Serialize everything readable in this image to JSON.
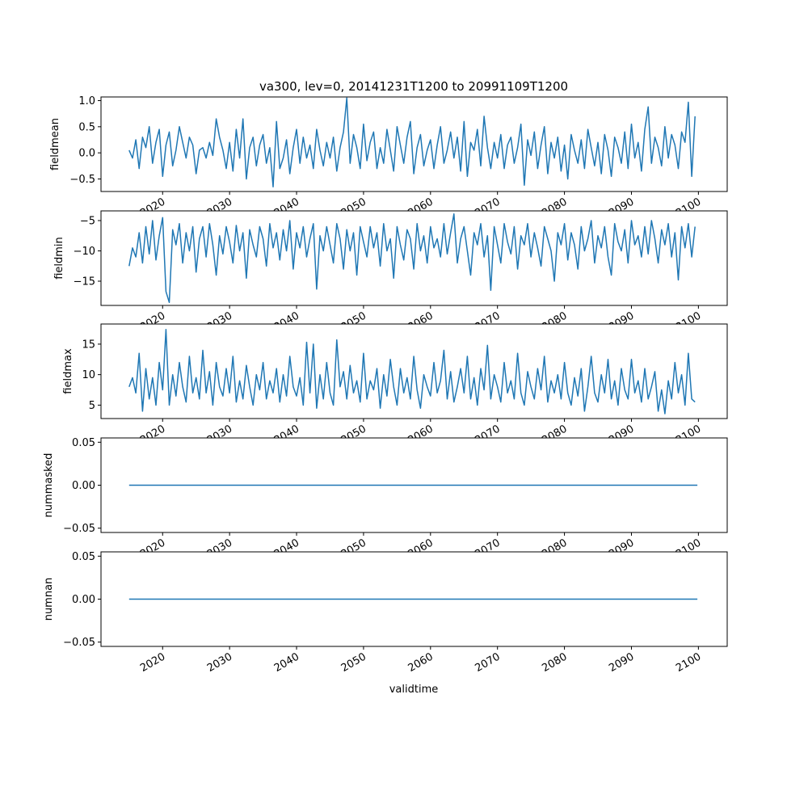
{
  "chart_data": {
    "type": "line",
    "title": "va300, lev=0, 20141231T1200 to 20991109T1200",
    "xlabel": "validtime",
    "x_ticks": [
      "2020",
      "2030",
      "2040",
      "2050",
      "2060",
      "2070",
      "2080",
      "2090",
      "2100"
    ],
    "x_tick_values": [
      2020,
      2030,
      2040,
      2050,
      2060,
      2070,
      2080,
      2090,
      2100
    ],
    "xlim": [
      2010.8,
      2104.3
    ],
    "line_color": "#1f77b4",
    "panels": [
      {
        "ylabel": "fieldmean",
        "ylim": [
          -0.74,
          1.07
        ],
        "y_ticks": [
          "1.0",
          "0.5",
          "0.0",
          "−0.5"
        ],
        "y_tick_values": [
          1.0,
          0.5,
          0.0,
          -0.5
        ],
        "x_start": 2015.0,
        "x_step": 0.5,
        "values": [
          0.05,
          -0.1,
          0.25,
          -0.3,
          0.3,
          0.1,
          0.5,
          -0.2,
          0.2,
          0.45,
          -0.45,
          0.15,
          0.4,
          -0.25,
          0.05,
          0.5,
          0.2,
          -0.1,
          0.3,
          0.15,
          -0.4,
          0.05,
          0.1,
          -0.1,
          0.2,
          -0.05,
          0.65,
          0.3,
          0.05,
          -0.3,
          0.2,
          -0.35,
          0.45,
          -0.1,
          0.65,
          -0.5,
          0.1,
          0.3,
          -0.25,
          0.15,
          0.35,
          -0.2,
          0.1,
          -0.65,
          0.6,
          -0.3,
          -0.1,
          0.25,
          -0.4,
          0.1,
          0.45,
          -0.2,
          0.3,
          -0.1,
          0.15,
          -0.3,
          0.45,
          0.05,
          -0.25,
          0.2,
          -0.1,
          0.3,
          -0.35,
          0.1,
          0.4,
          1.05,
          -0.2,
          0.35,
          0.1,
          -0.3,
          0.55,
          -0.15,
          0.2,
          0.4,
          -0.3,
          0.1,
          -0.2,
          0.45,
          0.05,
          -0.35,
          0.5,
          0.15,
          -0.2,
          0.3,
          0.6,
          -0.4,
          0.1,
          0.35,
          -0.25,
          0.05,
          0.25,
          -0.3,
          0.15,
          0.5,
          -0.2,
          0.05,
          0.4,
          -0.1,
          0.3,
          -0.35,
          0.6,
          -0.45,
          0.2,
          0.05,
          0.45,
          -0.25,
          0.7,
          0.1,
          -0.3,
          0.2,
          -0.1,
          0.35,
          -0.3,
          0.15,
          0.3,
          -0.2,
          0.1,
          0.55,
          -0.62,
          0.25,
          -0.05,
          0.4,
          -0.3,
          0.15,
          0.5,
          -0.4,
          0.2,
          -0.1,
          0.3,
          -0.35,
          0.15,
          -0.5,
          0.35,
          0.05,
          -0.2,
          0.25,
          -0.3,
          0.45,
          0.1,
          -0.25,
          0.2,
          -0.4,
          0.35,
          0.05,
          -0.45,
          0.3,
          0.1,
          -0.2,
          0.4,
          -0.3,
          0.55,
          -0.1,
          0.2,
          -0.35,
          0.45,
          0.88,
          -0.2,
          0.3,
          0.1,
          -0.25,
          0.5,
          -0.1,
          0.35,
          0.15,
          -0.3,
          0.4,
          0.2,
          0.97,
          -0.45,
          0.7
        ]
      },
      {
        "ylabel": "fieldmin",
        "ylim": [
          -19.0,
          -3.4
        ],
        "y_ticks": [
          "−5",
          "−10",
          "−15"
        ],
        "y_tick_values": [
          -5,
          -10,
          -15
        ],
        "x_start": 2015.0,
        "x_step": 0.5,
        "values": [
          -12.5,
          -9.5,
          -11,
          -7,
          -12,
          -6,
          -10.5,
          -5,
          -11.5,
          -7.5,
          -4.5,
          -16.7,
          -18.5,
          -6.5,
          -9,
          -5.5,
          -12,
          -7,
          -10,
          -6,
          -13.5,
          -8,
          -6,
          -11,
          -5.5,
          -9,
          -14,
          -7.5,
          -10.5,
          -6,
          -8.5,
          -12,
          -5.8,
          -10,
          -7,
          -14.5,
          -6.5,
          -9,
          -11,
          -6,
          -8,
          -12.5,
          -5.5,
          -9.5,
          -7,
          -11.5,
          -6.5,
          -10,
          -5,
          -13,
          -7,
          -9.5,
          -6,
          -11,
          -8,
          -5.5,
          -16.3,
          -7.5,
          -10,
          -6,
          -9,
          -12,
          -5.5,
          -8,
          -13,
          -6.5,
          -10,
          -7,
          -14,
          -6,
          -8.5,
          -11,
          -6,
          -9.5,
          -7,
          -12.5,
          -5.5,
          -10,
          -8,
          -14.5,
          -6,
          -9,
          -11.5,
          -6.5,
          -8,
          -13,
          -5.5,
          -10,
          -7.5,
          -12,
          -6,
          -9.5,
          -8,
          -11,
          -5.5,
          -10.5,
          -7,
          -3.9,
          -12,
          -8,
          -6,
          -10,
          -14,
          -7,
          -9,
          -5.5,
          -11,
          -7.5,
          -16.5,
          -6,
          -9,
          -12,
          -5.5,
          -8.5,
          -10.5,
          -6,
          -13,
          -7.5,
          -9,
          -5.5,
          -11,
          -7,
          -9.5,
          -12.5,
          -6,
          -8,
          -10,
          -15,
          -7,
          -9,
          -5.5,
          -11.5,
          -7,
          -9,
          -13,
          -6,
          -10,
          -8,
          -5,
          -12,
          -7.5,
          -9.5,
          -6,
          -11,
          -14,
          -5.5,
          -8.5,
          -10,
          -6.5,
          -12,
          -5,
          -9,
          -7.5,
          -11,
          -6,
          -10.5,
          -5,
          -8,
          -12,
          -6.5,
          -9,
          -5.5,
          -11,
          -7,
          -14.8,
          -6,
          -9.5,
          -5.5,
          -11,
          -6
        ]
      },
      {
        "ylabel": "fieldmax",
        "ylim": [
          2.8,
          18.3
        ],
        "y_ticks": [
          "15",
          "10",
          "5"
        ],
        "y_tick_values": [
          15,
          10,
          5
        ],
        "x_start": 2015.0,
        "x_step": 0.5,
        "values": [
          8,
          9.5,
          7,
          13.5,
          4,
          11,
          6,
          9.5,
          5,
          12,
          7.5,
          17.4,
          5,
          10,
          6.5,
          12,
          8,
          5.5,
          13,
          7,
          9.5,
          6,
          14,
          7,
          10.5,
          5,
          12,
          8,
          6.5,
          11,
          7,
          13,
          5.5,
          9,
          6,
          11.5,
          8,
          5,
          10,
          7.5,
          12,
          6,
          9,
          7,
          11,
          5.5,
          10,
          6.5,
          13,
          8,
          6.5,
          9.5,
          5,
          15.3,
          7,
          15,
          4.5,
          10,
          6,
          12,
          7,
          5,
          15.7,
          8,
          10.5,
          6,
          11.5,
          7,
          9,
          5.5,
          13.5,
          6,
          9,
          7.5,
          11,
          4.5,
          10,
          6.5,
          12.5,
          8,
          5,
          11,
          7,
          9.5,
          6,
          13,
          7.5,
          4.5,
          10,
          8,
          6.5,
          12,
          7,
          9,
          14,
          6,
          10.5,
          5.5,
          8,
          11,
          7,
          13,
          6,
          9.5,
          5,
          11,
          7.5,
          14.8,
          6,
          10,
          8,
          5.5,
          12,
          7,
          9,
          6,
          13.5,
          7,
          5,
          10.5,
          8,
          6,
          11,
          7.5,
          13,
          5.5,
          9,
          7,
          10,
          6,
          12,
          7,
          5,
          9.5,
          6.5,
          11,
          4,
          8,
          13,
          7,
          5.5,
          10,
          7,
          12.5,
          6,
          9,
          5,
          11,
          7.5,
          6,
          12.5,
          7,
          9,
          5.5,
          11,
          6,
          8,
          10.5,
          4,
          7.5,
          3.6,
          9,
          6,
          12,
          7,
          10,
          5,
          13.5,
          6,
          5.5
        ]
      },
      {
        "ylabel": "nummasked",
        "ylim": [
          -0.055,
          0.055
        ],
        "y_ticks": [
          "0.05",
          "0.00",
          "−0.05"
        ],
        "y_tick_values": [
          0.05,
          0.0,
          -0.05
        ],
        "x": [
          2015.0,
          2099.85
        ],
        "values": [
          0,
          0
        ]
      },
      {
        "ylabel": "numnan",
        "ylim": [
          -0.055,
          0.055
        ],
        "y_ticks": [
          "0.05",
          "0.00",
          "−0.05"
        ],
        "y_tick_values": [
          0.05,
          0.0,
          -0.05
        ],
        "x": [
          2015.0,
          2099.85
        ],
        "values": [
          0,
          0
        ]
      }
    ]
  }
}
